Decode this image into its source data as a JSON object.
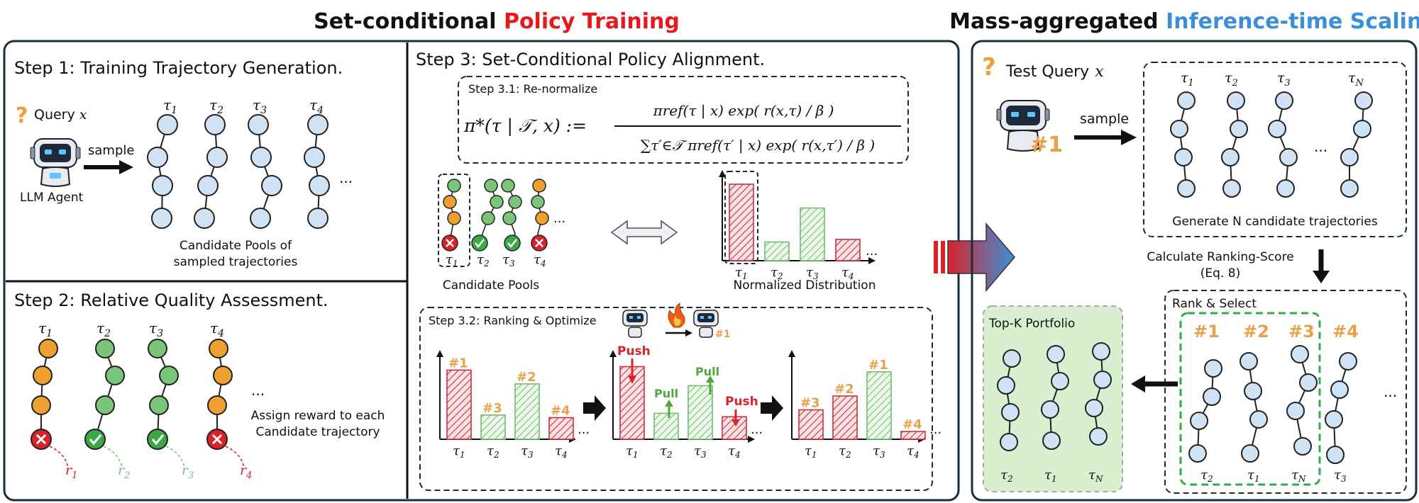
{
  "header": {
    "left_title_prefix": "Set-conditional ",
    "left_title_highlight": "Policy Training",
    "right_title_prefix": "Mass-aggregated ",
    "right_title_highlight": "Inference-time Scaling"
  },
  "colors": {
    "red": "#e8191c",
    "blue": "#3a8fd8",
    "orange": "#f0a030",
    "green": "#7ac57a",
    "node_blue": "#cfe3f5",
    "bar_red": "#c8303c",
    "bar_green": "#6cbf6c",
    "gold": "#e9a04a",
    "green_panel": "#d8f0cf"
  },
  "step1": {
    "title": "Step 1: Training Trajectory Generation.",
    "query_label": "Query",
    "query_var": "x",
    "sample_label": "sample",
    "agent_label": "LLM Agent",
    "trajectories": [
      "τ1",
      "τ2",
      "τ3",
      "τ4"
    ],
    "ellipsis": "...",
    "caption_line1": "Candidate Pools of",
    "caption_line2": "sampled trajectories"
  },
  "step2": {
    "title": "Step 2: Relative Quality Assessment.",
    "trajectories": [
      "τ1",
      "τ2",
      "τ3",
      "τ4"
    ],
    "rewards": [
      "r1",
      "r2",
      "r3",
      "r4"
    ],
    "outcomes": [
      "fail",
      "pass",
      "pass",
      "fail"
    ],
    "ellipsis": "...",
    "caption_line1": "Assign reward to each",
    "caption_line2": "Candidate trajectory"
  },
  "step3": {
    "title": "Step 3: Set-Conditional Policy Alignment.",
    "sub1_title": "Step 3.1: Re-normalize",
    "formula_lhs": "π*(τ | 𝒯, x) :=",
    "formula_num": "πref(τ | x) exp( r(x,τ) / β )",
    "formula_den": "∑τ′∈𝒯 πref(τ′ | x) exp( r(x,τ′) / β )",
    "pool_label": "Candidate Pools",
    "dist_label": "Normalized Distribution",
    "sub2_title": "Step 3.2: Ranking & Optimize",
    "push_label": "Push",
    "pull_label": "Pull",
    "rank_marks": [
      "#1",
      "#2",
      "#3",
      "#4"
    ],
    "ellipsis": "..."
  },
  "chart_data": [
    {
      "type": "bar",
      "title": "Normalized Distribution",
      "categories": [
        "τ1",
        "τ2",
        "τ3",
        "τ4"
      ],
      "values": [
        90,
        22,
        62,
        25
      ],
      "ylim": [
        0,
        100
      ]
    },
    {
      "type": "bar",
      "categories": [
        "τ1",
        "τ2",
        "τ3",
        "τ4"
      ],
      "values": [
        80,
        28,
        64,
        25
      ],
      "ylim": [
        0,
        100
      ]
    },
    {
      "type": "bar",
      "categories": [
        "τ1",
        "τ2",
        "τ3",
        "τ4"
      ],
      "values": [
        84,
        30,
        62,
        26
      ],
      "ylim": [
        0,
        100
      ]
    },
    {
      "type": "bar",
      "categories": [
        "τ1",
        "τ2",
        "τ3",
        "τ4"
      ],
      "values": [
        34,
        50,
        78,
        9
      ],
      "ylim": [
        0,
        100
      ]
    }
  ],
  "inference": {
    "test_query_label": "Test Query",
    "query_var": "x",
    "sample_label": "sample",
    "trajectories": [
      "τ1",
      "τ2",
      "τ3",
      "τN"
    ],
    "ellipsis": "...",
    "generate_caption": "Generate N candidate trajectories",
    "rank_score_line1": "Calculate Ranking-Score",
    "rank_score_line2": "(Eq. 8)",
    "rank_select_label": "Rank & Select",
    "rank_marks": [
      "#1",
      "#2",
      "#3",
      "#4"
    ],
    "rank_trajs": [
      "τ2",
      "τ1",
      "τN",
      "τ3"
    ],
    "topk_label": "Top-K Portfolio",
    "topk_trajs": [
      "τ2",
      "τ1",
      "τN"
    ]
  }
}
